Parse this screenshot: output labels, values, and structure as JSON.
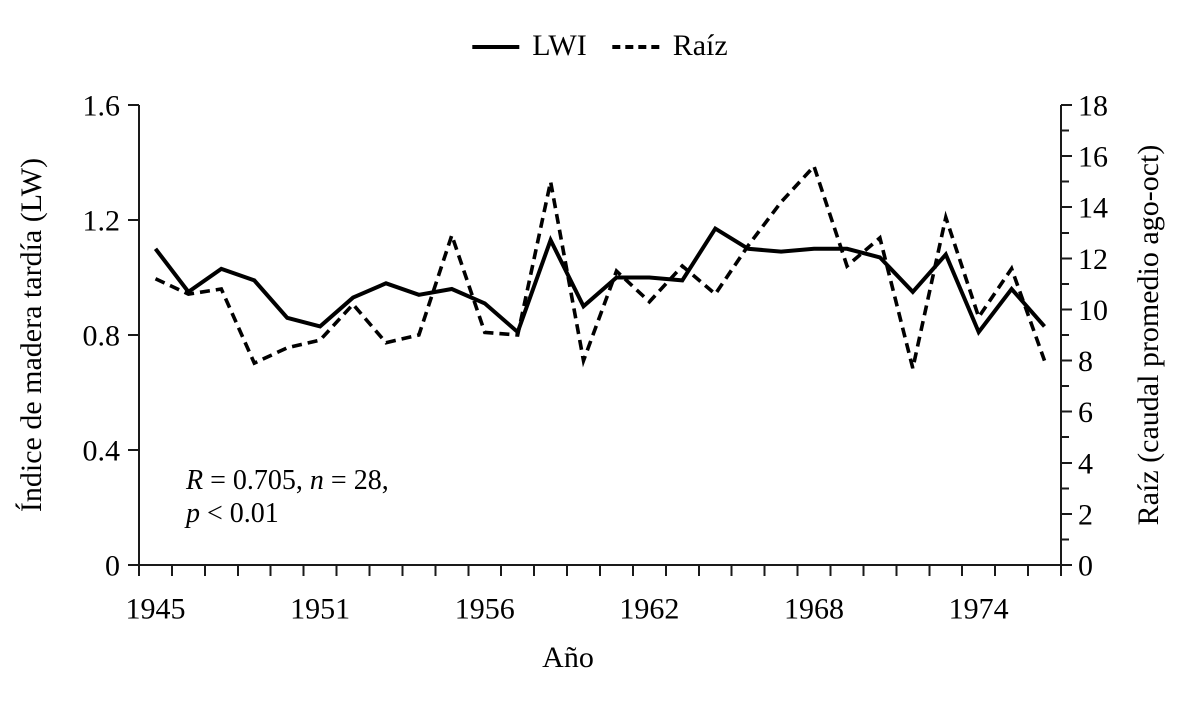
{
  "chart_data": {
    "type": "line",
    "title": "",
    "legend": [
      {
        "name": "LWI",
        "style": "solid"
      },
      {
        "name": "Raíz",
        "style": "dashed"
      }
    ],
    "x_axis": {
      "title": "Año",
      "n_bins": 28,
      "labels": [
        {
          "bin": 0,
          "text": "1945"
        },
        {
          "bin": 5,
          "text": "1951"
        },
        {
          "bin": 10,
          "text": "1956"
        },
        {
          "bin": 15,
          "text": "1962"
        },
        {
          "bin": 20,
          "text": "1968"
        },
        {
          "bin": 25,
          "text": "1974"
        }
      ]
    },
    "left_axis": {
      "title": "Índice de madera tardía (LW)",
      "min": 0,
      "max": 1.6,
      "tick_labels": [
        "0",
        "0.4",
        "0.8",
        "1.2",
        "1.6"
      ]
    },
    "right_axis": {
      "title": "Raíz (caudal promedio ago-oct)",
      "min": 0,
      "max": 18,
      "major_step": 2,
      "minor_step": 1,
      "tick_labels": [
        "0",
        "2",
        "4",
        "6",
        "8",
        "10",
        "12",
        "14",
        "16",
        "18"
      ]
    },
    "series": [
      {
        "name": "LWI",
        "axis": "left",
        "style": "solid",
        "values": [
          1.1,
          0.95,
          1.03,
          0.99,
          0.86,
          0.83,
          0.93,
          0.98,
          0.94,
          0.96,
          0.91,
          0.81,
          1.13,
          0.9,
          1.0,
          1.0,
          0.99,
          1.17,
          1.1,
          1.09,
          1.1,
          1.1,
          1.07,
          0.95,
          1.08,
          0.81,
          0.96,
          0.83
        ]
      },
      {
        "name": "Raíz",
        "axis": "right",
        "style": "dashed",
        "values": [
          11.2,
          10.6,
          10.8,
          7.9,
          8.5,
          8.8,
          10.2,
          8.7,
          9.0,
          12.9,
          9.1,
          9.0,
          15.0,
          8.0,
          11.5,
          10.3,
          11.7,
          10.6,
          12.5,
          14.2,
          15.6,
          11.7,
          12.8,
          7.7,
          13.6,
          9.7,
          11.6,
          8.0
        ]
      }
    ],
    "annotation": {
      "lines": [
        [
          {
            "text": "R",
            "italic": true
          },
          {
            "text": " = 0.705, ",
            "italic": false
          },
          {
            "text": "n",
            "italic": true
          },
          {
            "text": " = 28,",
            "italic": false
          }
        ],
        [
          {
            "text": "p",
            "italic": true
          },
          {
            "text": " < 0.01",
            "italic": false
          }
        ]
      ]
    },
    "colors": {
      "line": "#000000",
      "axis": "#1a1a1a",
      "background": "#ffffff"
    },
    "layout": {
      "grid": false,
      "legend_position": "top-center"
    }
  }
}
